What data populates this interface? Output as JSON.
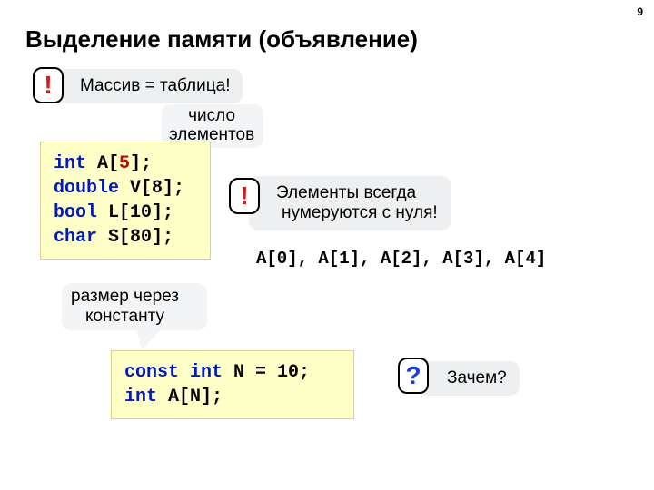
{
  "page_number": "9",
  "title": "Выделение памяти (объявление)",
  "callout1": {
    "text": "Массив = таблица!",
    "badge": "!"
  },
  "annot_elem_count_l1": "число",
  "annot_elem_count_l2": "элементов",
  "code1": {
    "l1_kw": "int",
    "l1_rest1": " A[",
    "l1_n": "5",
    "l1_rest2": "];",
    "l2_kw": "double",
    "l2_rest": " V[8];",
    "l3_kw": "bool",
    "l3_rest": " L[10];",
    "l4_kw": "char",
    "l4_rest": " S[80];"
  },
  "callout2": {
    "badge": "!",
    "l1": "Элементы всегда",
    "l2": "нумеруются с нуля!"
  },
  "arrays_enum": "A[0], A[1], A[2], A[3], A[4]",
  "annot_const_l1": "размер через",
  "annot_const_l2": "константу",
  "code2": {
    "l1_kw1": "const",
    "l1_sp1": " ",
    "l1_kw2": "int",
    "l1_rest": " N = 10;",
    "l2_kw": "int",
    "l2_rest": " A[N];"
  },
  "callout3": {
    "badge": "?",
    "text": "Зачем?"
  },
  "colors": {
    "callout_bg": "#edeff0",
    "code_bg": "#ffffc8",
    "keyword": "#0018c8",
    "red": "#c80000",
    "excl": "#d91a1a",
    "q": "#1a3cd9"
  }
}
